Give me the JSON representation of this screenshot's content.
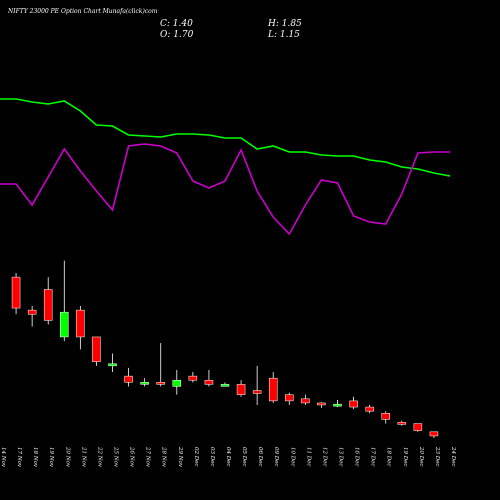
{
  "header": {
    "title": "NIFTY 23000 PE Option Chart Munafa(click)com",
    "close": "C: 1.40",
    "open": "O: 1.70",
    "high": "H: 1.85",
    "low": "L: 1.15"
  },
  "chart_data": {
    "type": "candlestick",
    "colors": {
      "background": "#000000",
      "up": "#00ff00",
      "down": "#ff0000",
      "line_green": "#00ff00",
      "line_magenta": "#cc00cc",
      "wick": "#ffffff"
    },
    "categories": [
      "14 Nov",
      "17 Nov",
      "18 Nov",
      "19 Nov",
      "20 Nov",
      "21 Nov",
      "22 Nov",
      "25 Nov",
      "26 Nov",
      "27 Nov",
      "28 Nov",
      "29 Nov",
      "02 Dec",
      "03 Dec",
      "04 Dec",
      "05 Dec",
      "06 Dec",
      "09 Dec",
      "10 Dec",
      "11 Dec",
      "12 Dec",
      "13 Dec",
      "16 Dec",
      "17 Dec",
      "18 Dec",
      "19 Dec",
      "20 Dec",
      "23 Dec",
      "24 Dec"
    ],
    "candles": [
      {
        "o": 0,
        "h": 0,
        "l": 0,
        "c": 0
      },
      {
        "o": 32.0,
        "h": 33.0,
        "l": 23.0,
        "c": 24.5
      },
      {
        "o": 24.0,
        "h": 25.0,
        "l": 20.0,
        "c": 23.0
      },
      {
        "o": 29.0,
        "h": 32.0,
        "l": 20.5,
        "c": 21.5
      },
      {
        "o": 17.5,
        "h": 36.0,
        "l": 16.5,
        "c": 23.5
      },
      {
        "o": 24.0,
        "h": 25.0,
        "l": 14.5,
        "c": 17.5
      },
      {
        "o": 17.5,
        "h": 17.5,
        "l": 10.5,
        "c": 11.5
      },
      {
        "o": 10.5,
        "h": 13.5,
        "l": 9.0,
        "c": 11.0
      },
      {
        "o": 8.0,
        "h": 10.0,
        "l": 5.5,
        "c": 6.5
      },
      {
        "o": 6.0,
        "h": 7.5,
        "l": 5.5,
        "c": 6.5
      },
      {
        "o": 6.5,
        "h": 16.0,
        "l": 5.5,
        "c": 6.0
      },
      {
        "o": 5.5,
        "h": 9.5,
        "l": 3.5,
        "c": 7.0
      },
      {
        "o": 8.0,
        "h": 9.0,
        "l": 6.5,
        "c": 7.0
      },
      {
        "o": 7.0,
        "h": 9.5,
        "l": 5.5,
        "c": 6.0
      },
      {
        "o": 6.0,
        "h": 6.5,
        "l": 5.5,
        "c": 6.0
      },
      {
        "o": 6.0,
        "h": 7.0,
        "l": 3.0,
        "c": 3.5
      },
      {
        "o": 4.5,
        "h": 10.5,
        "l": 1.0,
        "c": 3.8
      },
      {
        "o": 7.5,
        "h": 9.0,
        "l": 1.5,
        "c": 2.0
      },
      {
        "o": 3.5,
        "h": 4.0,
        "l": 1.0,
        "c": 2.0
      },
      {
        "o": 2.5,
        "h": 3.5,
        "l": 1.0,
        "c": 1.5
      },
      {
        "o": 1.5,
        "h": 1.7,
        "l": 0.3,
        "c": 1.2
      },
      {
        "o": 1.2,
        "h": 2.2,
        "l": 0.5,
        "c": 1.2
      },
      {
        "o": 2.0,
        "h": 3.0,
        "l": 0.0,
        "c": 0.5
      },
      {
        "o": 0.5,
        "h": 1.0,
        "l": -1.0,
        "c": -0.5
      },
      {
        "o": -1.0,
        "h": -0.5,
        "l": -3.5,
        "c": -2.5
      },
      {
        "o": -3.2,
        "h": -2.8,
        "l": -4.0,
        "c": -3.7
      },
      {
        "o": -3.5,
        "h": -3.5,
        "l": -5.5,
        "c": -5.2
      },
      {
        "o": -5.5,
        "h": -5.5,
        "l": -7.0,
        "c": -6.5
      },
      {
        "o": 0,
        "h": 0,
        "l": 0,
        "c": 0
      }
    ],
    "green_line": [
      99,
      99,
      102,
      104,
      101,
      111,
      125,
      126,
      135,
      136,
      137,
      134,
      134,
      135,
      138,
      138,
      149,
      146,
      152,
      152,
      155,
      156,
      156,
      160,
      162,
      167,
      169,
      173,
      176
    ],
    "magenta_line": [
      184,
      184,
      205,
      177,
      149,
      171,
      191,
      210,
      146,
      144,
      146,
      153,
      181,
      188,
      181,
      150,
      191,
      217,
      234,
      205,
      180,
      183,
      216,
      222,
      224,
      194,
      153,
      152,
      152
    ]
  }
}
